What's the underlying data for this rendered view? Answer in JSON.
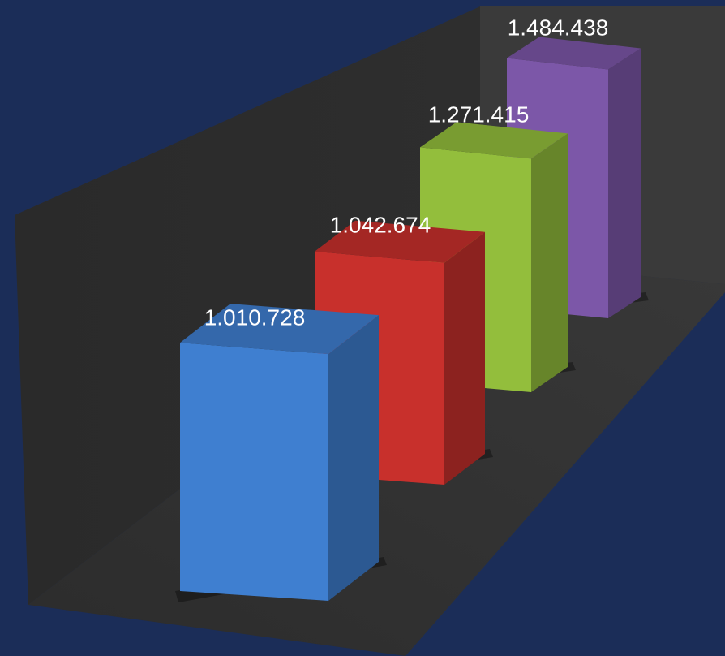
{
  "chart_data": {
    "type": "bar",
    "style": "3d-column",
    "values": [
      1010728,
      1042674,
      1271415,
      1484438
    ],
    "data_labels": [
      "1.010.728",
      "1.042.674",
      "1.271.415",
      "1.484.438"
    ],
    "colors": [
      "#3f7fd0",
      "#c8302c",
      "#93be3c",
      "#7c57a8"
    ],
    "title": "",
    "xlabel": "",
    "ylabel": "",
    "grid": false,
    "legend": "none"
  },
  "background_color": "#1b2d58",
  "wall_color": "#2b2b2b"
}
